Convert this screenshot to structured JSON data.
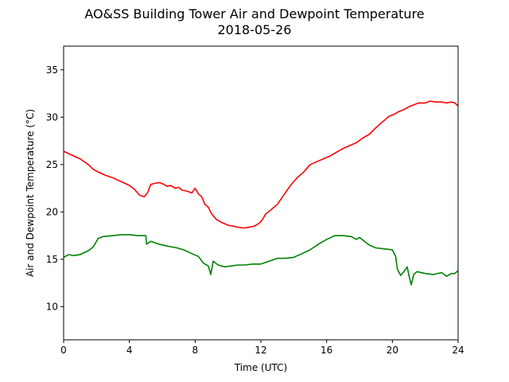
{
  "chart_data": {
    "type": "line",
    "title": "AO&SS Building Tower Air and Dewpoint Temperature",
    "subtitle": "2018-05-26",
    "xlabel": "Time (UTC)",
    "ylabel": "Air and Dewpoint Temperature (°C)",
    "xlim": [
      0,
      24
    ],
    "ylim": [
      6.5,
      37.5
    ],
    "xticks": [
      0,
      4,
      8,
      12,
      16,
      20,
      24
    ],
    "yticks": [
      10,
      15,
      20,
      25,
      30,
      35
    ],
    "grid": false,
    "legend": "none",
    "series": [
      {
        "color": "#ff0000",
        "x": [
          0,
          0.5,
          1,
          1.5,
          1.8,
          2,
          2.5,
          3,
          3.5,
          4,
          4.3,
          4.6,
          4.9,
          5.1,
          5.3,
          5.5,
          5.8,
          6,
          6.3,
          6.5,
          6.8,
          7,
          7.2,
          7.5,
          7.8,
          8,
          8.2,
          8.4,
          8.6,
          8.8,
          9,
          9.3,
          9.6,
          10,
          10.3,
          10.6,
          11,
          11.3,
          11.6,
          11.9,
          12.1,
          12.3,
          12.6,
          13,
          13.4,
          13.8,
          14.2,
          14.6,
          15,
          15.4,
          15.8,
          16.2,
          16.6,
          17,
          17.4,
          17.8,
          18.2,
          18.6,
          19,
          19.4,
          19.8,
          20.1,
          20.4,
          20.7,
          21,
          21.3,
          21.6,
          22,
          22.3,
          22.6,
          23,
          23.3,
          23.6,
          23.8,
          24
        ],
        "y": [
          26.4,
          26.0,
          25.6,
          25.0,
          24.5,
          24.3,
          23.9,
          23.6,
          23.2,
          22.8,
          22.4,
          21.8,
          21.6,
          22.0,
          22.9,
          23.0,
          23.1,
          23.0,
          22.7,
          22.8,
          22.5,
          22.6,
          22.3,
          22.2,
          22.0,
          22.5,
          21.9,
          21.6,
          20.8,
          20.5,
          19.8,
          19.2,
          18.9,
          18.6,
          18.5,
          18.4,
          18.3,
          18.4,
          18.5,
          18.8,
          19.2,
          19.8,
          20.2,
          20.8,
          21.8,
          22.8,
          23.6,
          24.2,
          25.0,
          25.3,
          25.6,
          25.9,
          26.3,
          26.7,
          27.0,
          27.3,
          27.8,
          28.2,
          28.9,
          29.5,
          30.1,
          30.3,
          30.6,
          30.8,
          31.1,
          31.3,
          31.5,
          31.5,
          31.7,
          31.6,
          31.6,
          31.5,
          31.6,
          31.5,
          31.2
        ]
      },
      {
        "color": "#008000",
        "x": [
          0,
          0.3,
          0.6,
          1,
          1.5,
          1.8,
          2.1,
          2.4,
          3,
          3.5,
          4,
          4.5,
          5,
          5.05,
          5.3,
          5.8,
          6.3,
          6.9,
          7.3,
          7.8,
          8.2,
          8.5,
          8.8,
          8.95,
          9.1,
          9.4,
          9.8,
          10.2,
          10.6,
          11,
          11.5,
          12,
          12.5,
          13,
          13.5,
          14,
          14.5,
          15,
          15.5,
          16,
          16.5,
          17,
          17.5,
          17.8,
          18,
          18.3,
          18.6,
          19,
          19.5,
          20,
          20.2,
          20.3,
          20.5,
          20.7,
          20.9,
          21.05,
          21.15,
          21.3,
          21.5,
          22,
          22.5,
          23,
          23.3,
          23.6,
          23.8,
          24
        ],
        "y": [
          15.2,
          15.5,
          15.4,
          15.5,
          15.9,
          16.3,
          17.2,
          17.4,
          17.5,
          17.6,
          17.6,
          17.5,
          17.5,
          16.6,
          16.9,
          16.6,
          16.4,
          16.2,
          16.0,
          15.6,
          15.3,
          14.6,
          14.3,
          13.4,
          14.8,
          14.4,
          14.2,
          14.3,
          14.4,
          14.4,
          14.5,
          14.5,
          14.8,
          15.1,
          15.1,
          15.2,
          15.6,
          16.0,
          16.6,
          17.1,
          17.5,
          17.5,
          17.4,
          17.1,
          17.3,
          16.9,
          16.5,
          16.2,
          16.1,
          16.0,
          15.3,
          14.0,
          13.3,
          13.7,
          14.2,
          13.0,
          12.3,
          13.4,
          13.7,
          13.5,
          13.4,
          13.6,
          13.2,
          13.5,
          13.5,
          13.8
        ]
      }
    ]
  }
}
